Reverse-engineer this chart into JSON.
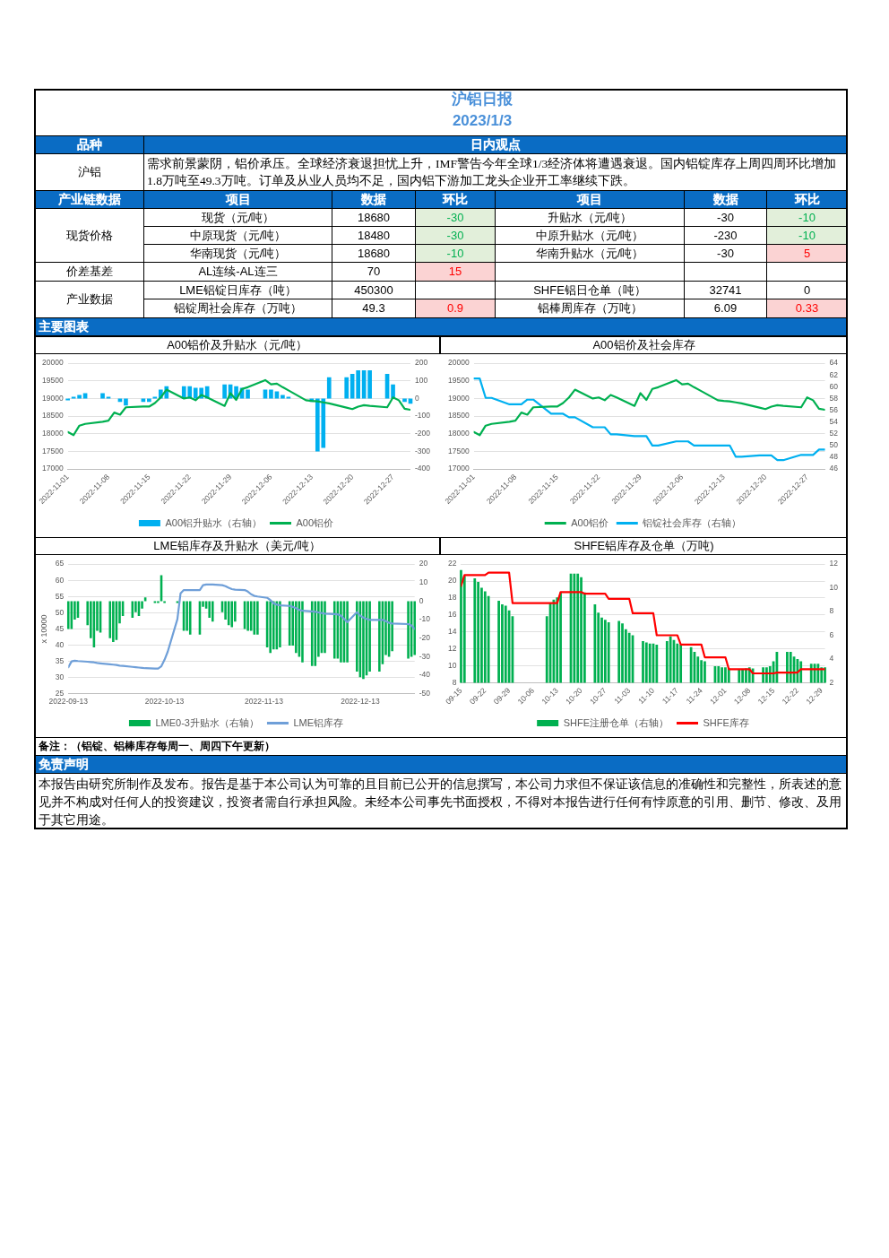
{
  "chart_data": [
    {
      "type": "other",
      "title": "沪铝日报",
      "subtitle": "2023/1/3",
      "annotations": [
        "品种",
        "日内观点",
        "沪铝",
        "需求前景蒙阴，铝价承压。全球经济衰退担忧上升，IMF警告今年全球1/3经济体将遭遇衰退。国内铝锭库存上周四周环比增加1.8万吨至49.3万吨。订单及从业人员均不足，国内铝下游加工龙头企业开工率继续下跌。",
        "产业链数据",
        "项目",
        "数据",
        "环比",
        "项目",
        "数据",
        "环比",
        "现货价格",
        "现货（元/吨）",
        "18680",
        "-30",
        "升贴水（元/吨）",
        "-30",
        "-10",
        "中原现货（元/吨）",
        "18480",
        "-30",
        "中原升贴水（元/吨）",
        "-230",
        "-10",
        "华南现货（元/吨）",
        "18680",
        "-10",
        "华南升贴水（元/吨）",
        "-30",
        "5",
        "价差基差",
        "AL连续-AL连三",
        "70",
        "15",
        "产业数据",
        "LME铝锭日库存（吨）",
        "450300",
        "SHFE铝日仓单（吨）",
        "32741",
        "0",
        "铝锭周社会库存（万吨）",
        "49.3",
        "0.9",
        "铝棒周库存（万吨）",
        "6.09",
        "0.33",
        "主要图表"
      ]
    },
    {
      "type": "bar",
      "title": "A00铝价及升贴水（元/吨）",
      "x": [
        "2022-11-01",
        "2022-11-02",
        "2022-11-03",
        "2022-11-04",
        "2022-11-07",
        "2022-11-08",
        "2022-11-09",
        "2022-11-10",
        "2022-11-11",
        "2022-11-14",
        "2022-11-15",
        "2022-11-16",
        "2022-11-17",
        "2022-11-18",
        "2022-11-21",
        "2022-11-22",
        "2022-11-23",
        "2022-11-24",
        "2022-11-25",
        "2022-11-28",
        "2022-11-29",
        "2022-11-30",
        "2022-12-01",
        "2022-12-02",
        "2022-12-05",
        "2022-12-06",
        "2022-12-07",
        "2022-12-08",
        "2022-12-09",
        "2022-12-12",
        "2022-12-13",
        "2022-12-14",
        "2022-12-15",
        "2022-12-16",
        "2022-12-19",
        "2022-12-20",
        "2022-12-21",
        "2022-12-22",
        "2022-12-23",
        "2022-12-26",
        "2022-12-27",
        "2022-12-28",
        "2022-12-29",
        "2022-12-30"
      ],
      "xlim": [
        "2022-11-01",
        "2022-12-30"
      ],
      "xticks": [
        "2022-11-01",
        "2022-11-08",
        "2022-11-15",
        "2022-11-22",
        "2022-11-29",
        "2022-12-06",
        "2022-12-13",
        "2022-12-20",
        "2022-12-27"
      ],
      "ylim": [
        17000,
        20000
      ],
      "yticks": [
        17000,
        17500,
        18000,
        18500,
        19000,
        19500,
        20000
      ],
      "y2lim": [
        -400,
        200
      ],
      "y2ticks": [
        -400,
        -300,
        -200,
        -100,
        0,
        100,
        200
      ],
      "grid": "y",
      "legend": "bottom",
      "series": [
        {
          "name": "A00铝升贴水（右轴）",
          "type": "bar",
          "axis": "y2",
          "color": "#00b0f0",
          "values": [
            -10,
            10,
            20,
            30,
            30,
            10,
            0,
            -20,
            -40,
            -20,
            -20,
            10,
            50,
            70,
            70,
            70,
            60,
            60,
            70,
            80,
            80,
            70,
            60,
            50,
            50,
            50,
            40,
            20,
            10,
            0,
            -20,
            -300,
            -280,
            120,
            120,
            140,
            160,
            160,
            160,
            140,
            80,
            0,
            -20,
            -30
          ]
        },
        {
          "name": "A00铝价",
          "type": "line",
          "color": "#00b050",
          "values": [
            18050,
            17960,
            18230,
            18280,
            18340,
            18370,
            18600,
            18540,
            18750,
            18770,
            18770,
            18870,
            19030,
            19250,
            19000,
            19030,
            18950,
            19100,
            19030,
            18790,
            19150,
            18960,
            19270,
            19320,
            19520,
            19400,
            19420,
            19320,
            19230,
            18950,
            18930,
            18920,
            18890,
            18860,
            18740,
            18700,
            18770,
            18810,
            18790,
            18750,
            19030,
            18950,
            18710,
            18680
          ]
        }
      ]
    },
    {
      "type": "line",
      "title": "A00铝价及社会库存",
      "x": [
        "2022-11-01",
        "2022-11-02",
        "2022-11-03",
        "2022-11-04",
        "2022-11-07",
        "2022-11-08",
        "2022-11-09",
        "2022-11-10",
        "2022-11-11",
        "2022-11-14",
        "2022-11-15",
        "2022-11-16",
        "2022-11-17",
        "2022-11-18",
        "2022-11-21",
        "2022-11-22",
        "2022-11-23",
        "2022-11-24",
        "2022-11-25",
        "2022-11-28",
        "2022-11-29",
        "2022-11-30",
        "2022-12-01",
        "2022-12-02",
        "2022-12-05",
        "2022-12-06",
        "2022-12-07",
        "2022-12-08",
        "2022-12-09",
        "2022-12-12",
        "2022-12-13",
        "2022-12-14",
        "2022-12-15",
        "2022-12-16",
        "2022-12-19",
        "2022-12-20",
        "2022-12-21",
        "2022-12-22",
        "2022-12-23",
        "2022-12-26",
        "2022-12-27",
        "2022-12-28",
        "2022-12-29",
        "2022-12-30"
      ],
      "xlim": [
        "2022-11-01",
        "2022-12-30"
      ],
      "xticks": [
        "2022-11-01",
        "2022-11-08",
        "2022-11-15",
        "2022-11-22",
        "2022-11-29",
        "2022-12-06",
        "2022-12-13",
        "2022-12-20",
        "2022-12-27"
      ],
      "ylim": [
        17000,
        20000
      ],
      "yticks": [
        17000,
        17500,
        18000,
        18500,
        19000,
        19500,
        20000
      ],
      "y2lim": [
        46,
        64
      ],
      "y2ticks": [
        46,
        48,
        50,
        52,
        54,
        56,
        58,
        60,
        62,
        64
      ],
      "grid": "y",
      "legend": "bottom",
      "series": [
        {
          "name": "A00铝价",
          "color": "#00b050",
          "values": [
            18050,
            17960,
            18230,
            18280,
            18340,
            18370,
            18600,
            18540,
            18750,
            18770,
            18770,
            18870,
            19030,
            19250,
            19000,
            19030,
            18950,
            19100,
            19030,
            18790,
            19150,
            18960,
            19270,
            19320,
            19520,
            19400,
            19420,
            19320,
            19230,
            18950,
            18930,
            18920,
            18890,
            18860,
            18740,
            18700,
            18770,
            18810,
            18790,
            18750,
            19030,
            18950,
            18710,
            18680
          ]
        },
        {
          "name": "铝锭社会库存（右轴）",
          "axis": "y2",
          "color": "#00b0f0",
          "values": [
            61.4,
            61.4,
            58.1,
            58.1,
            57.0,
            57.0,
            57.0,
            57.8,
            57.8,
            55.4,
            55.4,
            55.4,
            54.8,
            54.8,
            53.1,
            53.1,
            53.1,
            51.9,
            51.9,
            51.6,
            51.6,
            51.6,
            50.0,
            50.0,
            50.7,
            50.7,
            50.7,
            50.0,
            50.0,
            50.0,
            50.0,
            50.0,
            48.1,
            48.1,
            48.3,
            48.3,
            48.3,
            47.5,
            47.5,
            48.4,
            48.4,
            48.4,
            49.3,
            49.3
          ]
        }
      ]
    },
    {
      "type": "bar",
      "title": "LME铝库存及升贴水（美元/吨）",
      "ylabel": "x 10000",
      "x": [
        "2022-09-13",
        "2022-09-14",
        "2022-09-15",
        "2022-09-16",
        "2022-09-19",
        "2022-09-20",
        "2022-09-21",
        "2022-09-22",
        "2022-09-23",
        "2022-09-26",
        "2022-09-27",
        "2022-09-28",
        "2022-09-29",
        "2022-09-30",
        "2022-10-03",
        "2022-10-04",
        "2022-10-05",
        "2022-10-06",
        "2022-10-07",
        "2022-10-10",
        "2022-10-11",
        "2022-10-12",
        "2022-10-13",
        "2022-10-14",
        "2022-10-17",
        "2022-10-18",
        "2022-10-19",
        "2022-10-20",
        "2022-10-21",
        "2022-10-24",
        "2022-10-25",
        "2022-10-26",
        "2022-10-27",
        "2022-10-28",
        "2022-10-31",
        "2022-11-01",
        "2022-11-02",
        "2022-11-03",
        "2022-11-04",
        "2022-11-07",
        "2022-11-08",
        "2022-11-09",
        "2022-11-10",
        "2022-11-11",
        "2022-11-14",
        "2022-11-15",
        "2022-11-16",
        "2022-11-17",
        "2022-11-18",
        "2022-11-21",
        "2022-11-22",
        "2022-11-23",
        "2022-11-24",
        "2022-11-25",
        "2022-11-28",
        "2022-11-29",
        "2022-11-30",
        "2022-12-01",
        "2022-12-02",
        "2022-12-05",
        "2022-12-06",
        "2022-12-07",
        "2022-12-08",
        "2022-12-09",
        "2022-12-12",
        "2022-12-13",
        "2022-12-14",
        "2022-12-15",
        "2022-12-16",
        "2022-12-19",
        "2022-12-20",
        "2022-12-21",
        "2022-12-22",
        "2022-12-23",
        "2022-12-28",
        "2022-12-29",
        "2022-12-30"
      ],
      "xlim": [
        "2022-09-13",
        "2022-12-30"
      ],
      "xticks": [
        "2022-09-13",
        "2022-10-13",
        "2022-11-13",
        "2022-12-13"
      ],
      "ylim": [
        25,
        65
      ],
      "yticks": [
        25,
        30,
        35,
        40,
        45,
        50,
        55,
        60,
        65
      ],
      "y2lim": [
        -50,
        20
      ],
      "y2ticks": [
        -50,
        -40,
        -30,
        -20,
        -10,
        0,
        10,
        20
      ],
      "grid": "y",
      "legend": "bottom",
      "series": [
        {
          "name": "LME0-3升贴水（右轴）",
          "type": "bar",
          "axis": "y2",
          "color": "#00b050",
          "values": [
            -15,
            -15,
            -10,
            -9,
            -13,
            -20,
            -25,
            -16,
            -17,
            -20,
            -22,
            -21,
            -12,
            -8,
            -9,
            -6,
            -8,
            -4,
            2,
            -1,
            -1,
            14,
            -1,
            0,
            -1,
            0,
            -16,
            -16,
            -18,
            -18,
            -3,
            -4,
            -9,
            -11,
            -6,
            -10,
            -13,
            -14,
            -11,
            -15,
            -16,
            -16,
            -18,
            -18,
            -25,
            -28,
            -26,
            -26,
            -25,
            -24,
            -24,
            -28,
            -30,
            -33,
            -35,
            -35,
            -30,
            -28,
            -28,
            -31,
            -31,
            -33,
            -33,
            -33,
            -38,
            -41,
            -42,
            -40,
            -38,
            -38,
            -34,
            -29,
            -30,
            -27,
            -31,
            -30,
            -29
          ]
        },
        {
          "name": "LME铝库存",
          "type": "line",
          "color": "#6f9fd8",
          "values": [
            33.2,
            35.0,
            35.2,
            35.1,
            34.9,
            34.8,
            34.7,
            34.5,
            34.4,
            34.1,
            34.0,
            33.9,
            33.7,
            33.6,
            33.3,
            33.2,
            33.1,
            33.0,
            32.9,
            32.8,
            32.8,
            33.5,
            35.5,
            38.0,
            48.0,
            56.0,
            57.0,
            57.0,
            57.0,
            57.0,
            58.5,
            58.7,
            58.7,
            58.7,
            58.5,
            58.2,
            57.7,
            57.3,
            57.1,
            57.0,
            56.5,
            55.7,
            55.2,
            55.0,
            54.6,
            53.9,
            52.9,
            52.5,
            52.3,
            52.1,
            51.8,
            51.4,
            50.9,
            50.6,
            50.4,
            50.3,
            50.1,
            49.9,
            49.7,
            49.6,
            49.5,
            49.1,
            48.1,
            47.1,
            50.2,
            49.1,
            48.5,
            48.1,
            47.8,
            47.8,
            47.8,
            47.4,
            46.9,
            46.7,
            46.5,
            46.1,
            45.0
          ]
        }
      ]
    },
    {
      "type": "bar",
      "title": "SHFE铝库存及仓单（万吨)",
      "x": [
        "--09-15",
        "--09-16",
        "--09-19",
        "--09-20",
        "--09-21",
        "--09-22",
        "--09-23",
        "--09-26",
        "--09-27",
        "--09-28",
        "--09-29",
        "--09-30",
        "--10-10",
        "--10-11",
        "--10-12",
        "--10-13",
        "--10-14",
        "--10-17",
        "--10-18",
        "--10-19",
        "--10-20",
        "--10-21",
        "--10-24",
        "--10-25",
        "--10-26",
        "--10-27",
        "--10-28",
        "--10-31",
        "--11-01",
        "--11-02",
        "--11-03",
        "--11-04",
        "--11-07",
        "--11-08",
        "--11-09",
        "--11-10",
        "--11-11",
        "--11-14",
        "--11-15",
        "--11-16",
        "--11-17",
        "--11-18",
        "--11-21",
        "--11-22",
        "--11-23",
        "--11-24",
        "--11-25",
        "--11-28",
        "--11-29",
        "--11-30",
        "--12-01",
        "--12-02",
        "--12-05",
        "--12-06",
        "--12-07",
        "--12-08",
        "--12-09",
        "--12-12",
        "--12-13",
        "--12-14",
        "--12-15",
        "--12-16",
        "--12-19",
        "--12-20",
        "--12-21",
        "--12-22",
        "--12-23",
        "--12-26",
        "--12-27",
        "--12-28",
        "--12-29",
        "--12-30"
      ],
      "xlim": [
        "--09-15",
        "--12-30"
      ],
      "xticks": [
        {
          "value": "--09-15",
          "label": "09-15"
        },
        {
          "value": "--09-22",
          "label": "09-22"
        },
        {
          "value": "--09-29",
          "label": "09-29"
        },
        {
          "value": "--10-06",
          "label": "10-06"
        },
        {
          "value": "--10-13",
          "label": "10-13"
        },
        {
          "value": "--10-20",
          "label": "10-20"
        },
        {
          "value": "--10-27",
          "label": "10-27"
        },
        {
          "value": "--11-03",
          "label": "11-03"
        },
        {
          "value": "--11-10",
          "label": "11-10"
        },
        {
          "value": "--11-17",
          "label": "11-17"
        },
        {
          "value": "--11-24",
          "label": "11-24"
        },
        {
          "value": "--12-01",
          "label": "12-01"
        },
        {
          "value": "--12-08",
          "label": "12-08"
        },
        {
          "value": "--12-15",
          "label": "12-15"
        },
        {
          "value": "--12-22",
          "label": "12-22"
        },
        {
          "value": "--12-29",
          "label": "12-29"
        }
      ],
      "ylim": [
        8,
        22
      ],
      "yticks": [
        8,
        10,
        12,
        14,
        16,
        18,
        20,
        22
      ],
      "y2lim": [
        2,
        12
      ],
      "y2ticks": [
        2,
        4,
        6,
        8,
        10,
        12
      ],
      "grid": "y",
      "legend": "bottom",
      "series": [
        {
          "name": "SHFE注册仓单（右轴）",
          "type": "bar",
          "axis": "y2",
          "color": "#00b050",
          "values": [
            11.5,
            11.0,
            10.8,
            10.5,
            10.0,
            9.7,
            9.3,
            8.9,
            8.6,
            8.5,
            8.1,
            7.6,
            7.6,
            8.7,
            9.0,
            9.2,
            9.6,
            11.2,
            11.2,
            11.2,
            10.9,
            9.6,
            8.6,
            7.9,
            7.5,
            7.3,
            7.1,
            7.2,
            7.0,
            6.5,
            6.2,
            6.0,
            5.5,
            5.4,
            5.3,
            5.3,
            5.2,
            5.5,
            5.9,
            5.6,
            5.3,
            5.2,
            5.0,
            4.6,
            4.2,
            3.9,
            3.8,
            3.4,
            3.4,
            3.3,
            3.3,
            3.2,
            3.1,
            3.1,
            3.2,
            3.3,
            3.2,
            3.3,
            3.3,
            3.4,
            3.8,
            4.6,
            4.6,
            4.6,
            4.2,
            4.0,
            3.8,
            3.6,
            3.6,
            3.6,
            3.3,
            3.3
          ]
        },
        {
          "name": "SHFE库存",
          "type": "line",
          "color": "#ff0000",
          "values": [
            19.4,
            20.7,
            20.7,
            20.7,
            20.7,
            20.7,
            21.0,
            21.0,
            21.0,
            21.0,
            21.0,
            17.4,
            17.4,
            17.4,
            17.4,
            17.4,
            18.7,
            18.7,
            18.7,
            18.7,
            18.7,
            18.5,
            18.5,
            18.5,
            18.5,
            18.5,
            17.9,
            17.9,
            17.9,
            17.9,
            17.9,
            16.2,
            16.2,
            16.2,
            16.2,
            16.2,
            13.6,
            13.6,
            13.6,
            13.6,
            13.6,
            12.5,
            12.5,
            12.5,
            12.5,
            12.5,
            11.0,
            11.0,
            11.0,
            11.0,
            11.0,
            9.6,
            9.6,
            9.6,
            9.6,
            9.6,
            9.1,
            9.1,
            9.1,
            9.1,
            9.1,
            9.2,
            9.2,
            9.2,
            9.2,
            9.2,
            9.6,
            9.6,
            9.6,
            9.6,
            9.6,
            9.6
          ]
        }
      ]
    },
    {
      "type": "other",
      "annotations": [
        "备注：（铝锭、铝棒库存每周一、周四下午更新）",
        "免责声明",
        "本报告由研究所制作及发布。报告是基于本公司认为可靠的且目前已公开的信息撰写，本公司力求但不保证该信息的准确性和完整性，所表述的意见并不构成对任何人的投资建议，投资者需自行承担风险。未经本公司事先书面授权，不得对本报告进行任何有悖原意的引用、删节、修改、及用于其它用途。"
      ]
    }
  ]
}
